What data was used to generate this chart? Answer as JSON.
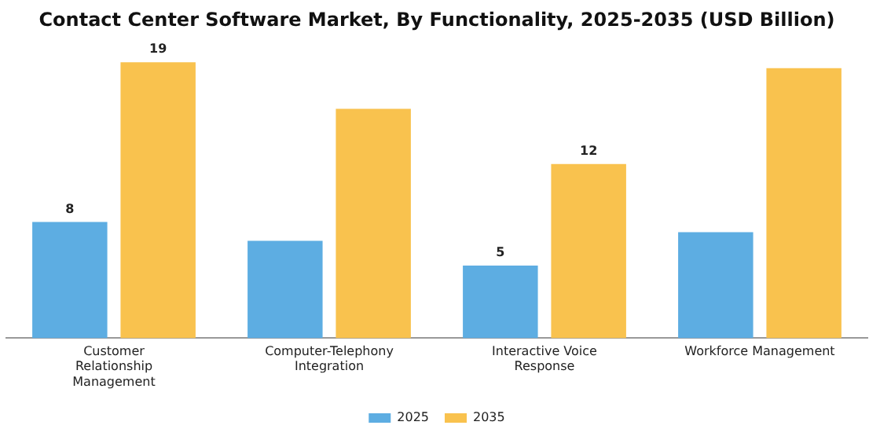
{
  "chart_data": {
    "type": "bar",
    "title": "Contact Center Software Market, By Functionality, 2025-2035 (USD Billion)",
    "categories": [
      "Customer Relationship Management",
      "Computer-Telephony Integration",
      "Interactive Voice Response",
      "Workforce Management"
    ],
    "series": [
      {
        "name": "2025",
        "color": "#5dade2",
        "values": [
          8,
          6.7,
          5,
          7.3
        ],
        "value_labels": [
          "8",
          null,
          "5",
          null
        ]
      },
      {
        "name": "2035",
        "color": "#f9c24e",
        "values": [
          19,
          15.8,
          12,
          18.6
        ],
        "value_labels": [
          "19",
          null,
          "12",
          null
        ]
      }
    ],
    "tick_labels": "x",
    "grid": false,
    "legend": "bottom"
  }
}
